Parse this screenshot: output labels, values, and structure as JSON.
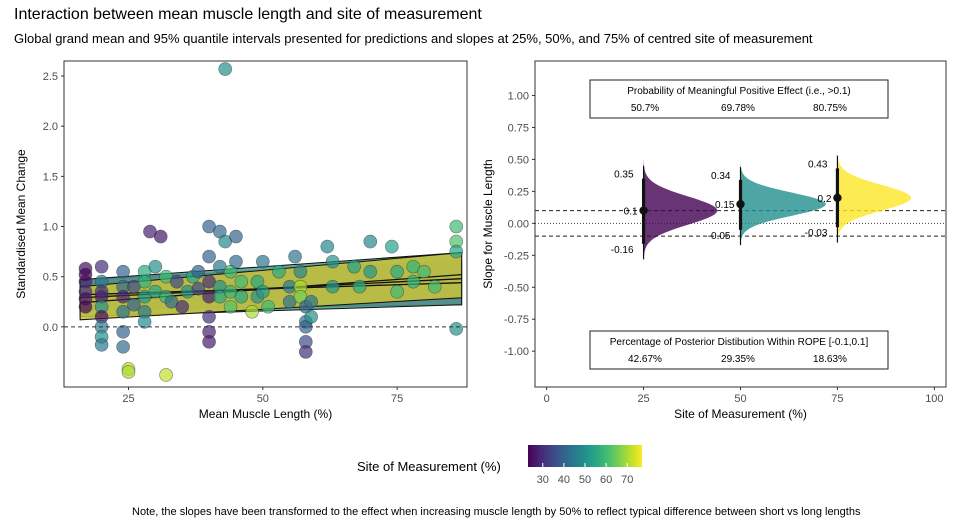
{
  "title": "Interaction between mean muscle length and site of measurement",
  "subtitle": "Global grand mean and 95% quantile intervals presented for predictions and slopes at 25%, 50%, and 75% of centred site of measurement",
  "note": "Note, the slopes have been transformed to the effect when increasing muscle length by 50% to reflect typical difference between short vs long lengths",
  "colors": {
    "purple": "#440154",
    "teal": "#21908C",
    "yellow": "#FDE725"
  },
  "chart_data": [
    {
      "type": "scatter",
      "xlabel": "Mean Muscle Length (%)",
      "ylabel": "Standardised Mean Change",
      "xlim": [
        13,
        88
      ],
      "ylim": [
        -0.6,
        2.65
      ],
      "x_ticks": [
        25,
        50,
        75
      ],
      "y_ticks": [
        0.0,
        0.5,
        1.0,
        1.5,
        2.0,
        2.5
      ],
      "y_tick_labels": [
        "0.0",
        "0.5",
        "1.0",
        "1.5",
        "2.0",
        "2.5"
      ],
      "reference_line": 0,
      "grid": false,
      "bands": [
        {
          "site": 25,
          "x": [
            16,
            87
          ],
          "lower": [
            0.17,
            0.22
          ],
          "upper": [
            0.47,
            0.66
          ],
          "mid": [
            0.32,
            0.44
          ]
        },
        {
          "site": 50,
          "x": [
            16,
            87
          ],
          "lower": [
            0.1,
            0.22
          ],
          "upper": [
            0.47,
            0.74
          ],
          "mid": [
            0.29,
            0.48
          ]
        },
        {
          "site": 75,
          "x": [
            16,
            87
          ],
          "lower": [
            0.07,
            0.29
          ],
          "upper": [
            0.4,
            0.74
          ],
          "mid": [
            0.24,
            0.52
          ]
        }
      ],
      "points": [
        {
          "x": 17,
          "y": 0.58,
          "s": 25
        },
        {
          "x": 17,
          "y": 0.45,
          "s": 28
        },
        {
          "x": 17,
          "y": 0.52,
          "s": 22
        },
        {
          "x": 17,
          "y": 0.35,
          "s": 30
        },
        {
          "x": 17,
          "y": 0.28,
          "s": 26
        },
        {
          "x": 17,
          "y": 0.2,
          "s": 24
        },
        {
          "x": 20,
          "y": 0.6,
          "s": 30
        },
        {
          "x": 20,
          "y": 0.45,
          "s": 45
        },
        {
          "x": 20,
          "y": 0.3,
          "s": 25
        },
        {
          "x": 20,
          "y": 0.2,
          "s": 50
        },
        {
          "x": 20,
          "y": 0.1,
          "s": 25
        },
        {
          "x": 20,
          "y": 0.0,
          "s": 45
        },
        {
          "x": 20,
          "y": -0.1,
          "s": 50
        },
        {
          "x": 20,
          "y": -0.18,
          "s": 45
        },
        {
          "x": 20,
          "y": 0.35,
          "s": 30
        },
        {
          "x": 24,
          "y": 0.55,
          "s": 40
        },
        {
          "x": 24,
          "y": 0.4,
          "s": 42
        },
        {
          "x": 24,
          "y": 0.3,
          "s": 28
        },
        {
          "x": 24,
          "y": 0.15,
          "s": 44
        },
        {
          "x": 24,
          "y": -0.05,
          "s": 40
        },
        {
          "x": 24,
          "y": -0.2,
          "s": 42
        },
        {
          "x": 25,
          "y": -0.42,
          "s": 72
        },
        {
          "x": 25,
          "y": -0.45,
          "s": 70
        },
        {
          "x": 26,
          "y": 0.4,
          "s": 35
        },
        {
          "x": 26,
          "y": 0.22,
          "s": 40
        },
        {
          "x": 28,
          "y": 0.55,
          "s": 56
        },
        {
          "x": 28,
          "y": 0.45,
          "s": 58
        },
        {
          "x": 28,
          "y": 0.3,
          "s": 52
        },
        {
          "x": 28,
          "y": 0.15,
          "s": 45
        },
        {
          "x": 28,
          "y": 0.05,
          "s": 48
        },
        {
          "x": 29,
          "y": 0.95,
          "s": 28
        },
        {
          "x": 30,
          "y": 0.6,
          "s": 50
        },
        {
          "x": 30,
          "y": 0.35,
          "s": 55
        },
        {
          "x": 31,
          "y": 0.9,
          "s": 26
        },
        {
          "x": 32,
          "y": 0.5,
          "s": 60
        },
        {
          "x": 32,
          "y": -0.48,
          "s": 72
        },
        {
          "x": 32,
          "y": 0.3,
          "s": 58
        },
        {
          "x": 33,
          "y": 0.25,
          "s": 42
        },
        {
          "x": 34,
          "y": 0.45,
          "s": 35
        },
        {
          "x": 35,
          "y": 0.2,
          "s": 30
        },
        {
          "x": 36,
          "y": 0.35,
          "s": 50
        },
        {
          "x": 37,
          "y": 0.5,
          "s": 55
        },
        {
          "x": 38,
          "y": 0.55,
          "s": 40
        },
        {
          "x": 38,
          "y": 0.38,
          "s": 35
        },
        {
          "x": 40,
          "y": 0.7,
          "s": 40
        },
        {
          "x": 40,
          "y": 0.45,
          "s": 30
        },
        {
          "x": 40,
          "y": 0.3,
          "s": 28
        },
        {
          "x": 40,
          "y": 0.1,
          "s": 30
        },
        {
          "x": 40,
          "y": -0.05,
          "s": 28
        },
        {
          "x": 40,
          "y": -0.15,
          "s": 27
        },
        {
          "x": 40,
          "y": 1.0,
          "s": 40
        },
        {
          "x": 42,
          "y": 0.95,
          "s": 42
        },
        {
          "x": 42,
          "y": 0.6,
          "s": 45
        },
        {
          "x": 42,
          "y": 0.4,
          "s": 50
        },
        {
          "x": 42,
          "y": 0.3,
          "s": 55
        },
        {
          "x": 43,
          "y": 2.57,
          "s": 50
        },
        {
          "x": 43,
          "y": 0.85,
          "s": 48
        },
        {
          "x": 44,
          "y": 0.55,
          "s": 60
        },
        {
          "x": 44,
          "y": 0.35,
          "s": 58
        },
        {
          "x": 44,
          "y": 0.2,
          "s": 62
        },
        {
          "x": 45,
          "y": 0.9,
          "s": 40
        },
        {
          "x": 45,
          "y": 0.65,
          "s": 42
        },
        {
          "x": 46,
          "y": 0.45,
          "s": 60
        },
        {
          "x": 46,
          "y": 0.3,
          "s": 55
        },
        {
          "x": 48,
          "y": 0.15,
          "s": 70
        },
        {
          "x": 49,
          "y": 0.45,
          "s": 55
        },
        {
          "x": 49,
          "y": 0.3,
          "s": 50
        },
        {
          "x": 50,
          "y": 0.65,
          "s": 44
        },
        {
          "x": 50,
          "y": 0.35,
          "s": 52
        },
        {
          "x": 51,
          "y": 0.2,
          "s": 60
        },
        {
          "x": 53,
          "y": 0.55,
          "s": 56
        },
        {
          "x": 55,
          "y": 0.4,
          "s": 45
        },
        {
          "x": 55,
          "y": 0.25,
          "s": 44
        },
        {
          "x": 56,
          "y": 0.7,
          "s": 44
        },
        {
          "x": 57,
          "y": 0.55,
          "s": 48
        },
        {
          "x": 57,
          "y": 0.4,
          "s": 70
        },
        {
          "x": 57,
          "y": 0.3,
          "s": 66
        },
        {
          "x": 58,
          "y": 0.2,
          "s": 40
        },
        {
          "x": 58,
          "y": 0.05,
          "s": 42
        },
        {
          "x": 58,
          "y": 0.0,
          "s": 40
        },
        {
          "x": 58,
          "y": -0.15,
          "s": 35
        },
        {
          "x": 58,
          "y": -0.25,
          "s": 30
        },
        {
          "x": 59,
          "y": 0.1,
          "s": 50
        },
        {
          "x": 59,
          "y": 0.25,
          "s": 44
        },
        {
          "x": 62,
          "y": 0.8,
          "s": 48
        },
        {
          "x": 63,
          "y": 0.65,
          "s": 50
        },
        {
          "x": 63,
          "y": 0.4,
          "s": 52
        },
        {
          "x": 67,
          "y": 0.6,
          "s": 54
        },
        {
          "x": 68,
          "y": 0.4,
          "s": 56
        },
        {
          "x": 70,
          "y": 0.55,
          "s": 52
        },
        {
          "x": 70,
          "y": 0.85,
          "s": 48
        },
        {
          "x": 74,
          "y": 0.8,
          "s": 54
        },
        {
          "x": 75,
          "y": 0.55,
          "s": 56
        },
        {
          "x": 75,
          "y": 0.35,
          "s": 60
        },
        {
          "x": 78,
          "y": 0.6,
          "s": 58
        },
        {
          "x": 78,
          "y": 0.45,
          "s": 58
        },
        {
          "x": 80,
          "y": 0.55,
          "s": 60
        },
        {
          "x": 82,
          "y": 0.4,
          "s": 60
        },
        {
          "x": 86,
          "y": 1.0,
          "s": 60
        },
        {
          "x": 86,
          "y": 0.85,
          "s": 62
        },
        {
          "x": 86,
          "y": 0.75,
          "s": 55
        },
        {
          "x": 86,
          "y": -0.02,
          "s": 50
        }
      ]
    },
    {
      "type": "density",
      "xlabel": "Site of Measurement (%)",
      "ylabel": "Slope for Muscle Length",
      "xlim": [
        -3,
        103
      ],
      "ylim": [
        -1.28,
        1.27
      ],
      "x_ticks": [
        0,
        25,
        50,
        75,
        100
      ],
      "y_ticks": [
        -1.0,
        -0.75,
        -0.5,
        -0.25,
        0.0,
        0.25,
        0.5,
        0.75,
        1.0
      ],
      "y_tick_labels": [
        "-1.00",
        "-0.75",
        "-0.50",
        "-0.25",
        "0.00",
        "0.25",
        "0.50",
        "0.75",
        "1.00"
      ],
      "rope": [
        -0.1,
        0.1
      ],
      "grid": false,
      "distributions": [
        {
          "site": 25,
          "mean": 0.1,
          "lower": -0.16,
          "upper": 0.35,
          "sd": 0.11,
          "scale": 19,
          "mean_label": "0.1",
          "lower_label": "-0.16",
          "upper_label": "0.35"
        },
        {
          "site": 50,
          "mean": 0.15,
          "lower": -0.05,
          "upper": 0.34,
          "sd": 0.09,
          "scale": 22,
          "mean_label": "0.15",
          "lower_label": "-0.05",
          "upper_label": "0.34"
        },
        {
          "site": 75,
          "mean": 0.2,
          "lower": -0.03,
          "upper": 0.43,
          "sd": 0.1,
          "scale": 19,
          "mean_label": "0.2",
          "lower_label": "-0.03",
          "upper_label": "0.43"
        }
      ],
      "prob_box": {
        "title": "Probability of Meaningful Positive Effect (i.e., >0.1)",
        "values": [
          "50.7%",
          "69.78%",
          "80.75%"
        ]
      },
      "rope_box": {
        "title": "Percentage of Posterior Distibution Within ROPE [-0.1,0.1]",
        "values": [
          "42.67%",
          "29.35%",
          "18.63%"
        ]
      }
    }
  ],
  "legend": {
    "title": "Site of Measurement (%)",
    "min": 23,
    "max": 77,
    "ticks": [
      30,
      40,
      50,
      60,
      70
    ],
    "tick_labels": [
      "30",
      "40",
      "50",
      "60",
      "70"
    ]
  }
}
